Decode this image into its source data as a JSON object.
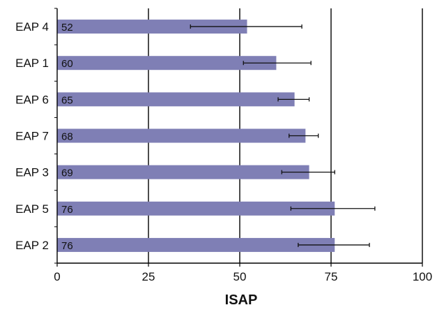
{
  "chart_data": {
    "type": "bar",
    "orientation": "horizontal",
    "title": "",
    "xlabel": "ISAP",
    "ylabel": "",
    "xlim": [
      0,
      100
    ],
    "xticks": [
      0,
      25,
      50,
      75,
      100
    ],
    "grid": "vertical",
    "bar_color": "#7f7fb5",
    "categories": [
      "EAP 4",
      "EAP 1",
      "EAP 6",
      "EAP 7",
      "EAP 3",
      "EAP 5",
      "EAP 2"
    ],
    "values": [
      52,
      60,
      65,
      68,
      69,
      76,
      76
    ],
    "value_labels": [
      "52",
      "60",
      "65",
      "68",
      "69",
      "76",
      "76"
    ],
    "error_low": [
      36.5,
      51,
      60.5,
      63.5,
      61.5,
      64,
      66
    ],
    "error_high": [
      67,
      69.5,
      69,
      71.5,
      76,
      87,
      85.5
    ]
  }
}
